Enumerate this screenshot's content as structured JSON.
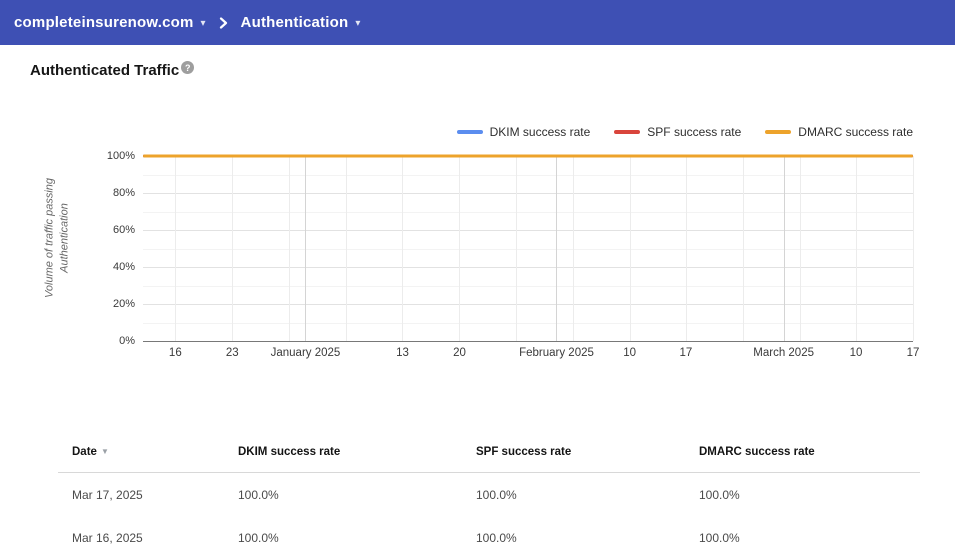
{
  "nav": {
    "domain": "completeinsurenow.com",
    "section": "Authentication",
    "bar_color": "#3e50b4"
  },
  "page": {
    "title": "Authenticated Traffic"
  },
  "chart_data": {
    "type": "line",
    "title": "",
    "xlabel": "",
    "ylabel": "Volume of traffic passing Authentication",
    "ylim": [
      0,
      100
    ],
    "grid": true,
    "legend_position": "top-right",
    "x_range": [
      "Dec 12, 2024",
      "Mar 17, 2025"
    ],
    "y_ticks": [
      {
        "percent": 0,
        "label": "0%"
      },
      {
        "percent": 20,
        "label": "20%"
      },
      {
        "percent": 40,
        "label": "40%"
      },
      {
        "percent": 60,
        "label": "60%"
      },
      {
        "percent": 80,
        "label": "80%"
      },
      {
        "percent": 100,
        "label": "100%"
      }
    ],
    "x_ticks": [
      {
        "label": "16",
        "f": 0.042,
        "month": false
      },
      {
        "label": "23",
        "f": 0.116,
        "month": false
      },
      {
        "label": "January 2025",
        "f": 0.211,
        "month": true
      },
      {
        "label": "13",
        "f": 0.337,
        "month": false
      },
      {
        "label": "20",
        "f": 0.411,
        "month": false
      },
      {
        "label": "February 2025",
        "f": 0.537,
        "month": true
      },
      {
        "label": "10",
        "f": 0.632,
        "month": false
      },
      {
        "label": "17",
        "f": 0.705,
        "month": false
      },
      {
        "label": "March 2025",
        "f": 0.832,
        "month": true
      },
      {
        "label": "10",
        "f": 0.926,
        "month": false
      },
      {
        "label": "17",
        "f": 1.0,
        "month": false
      }
    ],
    "x_minor_gridlines": [
      0.189,
      0.263,
      0.484,
      0.558,
      0.779,
      0.853
    ],
    "series": [
      {
        "name": "DKIM success rate",
        "color": "#5b8def",
        "constant_value_percent": 100
      },
      {
        "name": "SPF success rate",
        "color": "#d9453c",
        "constant_value_percent": 100
      },
      {
        "name": "DMARC success rate",
        "color": "#eda32b",
        "constant_value_percent": 100
      }
    ]
  },
  "table": {
    "columns": [
      {
        "label": "Date",
        "sortable": true,
        "sorted": "desc"
      },
      {
        "label": "DKIM success rate",
        "sortable": false
      },
      {
        "label": "SPF success rate",
        "sortable": false
      },
      {
        "label": "DMARC success rate",
        "sortable": false
      }
    ],
    "rows": [
      [
        "Mar 17, 2025",
        "100.0%",
        "100.0%",
        "100.0%"
      ],
      [
        "Mar 16, 2025",
        "100.0%",
        "100.0%",
        "100.0%"
      ]
    ]
  }
}
